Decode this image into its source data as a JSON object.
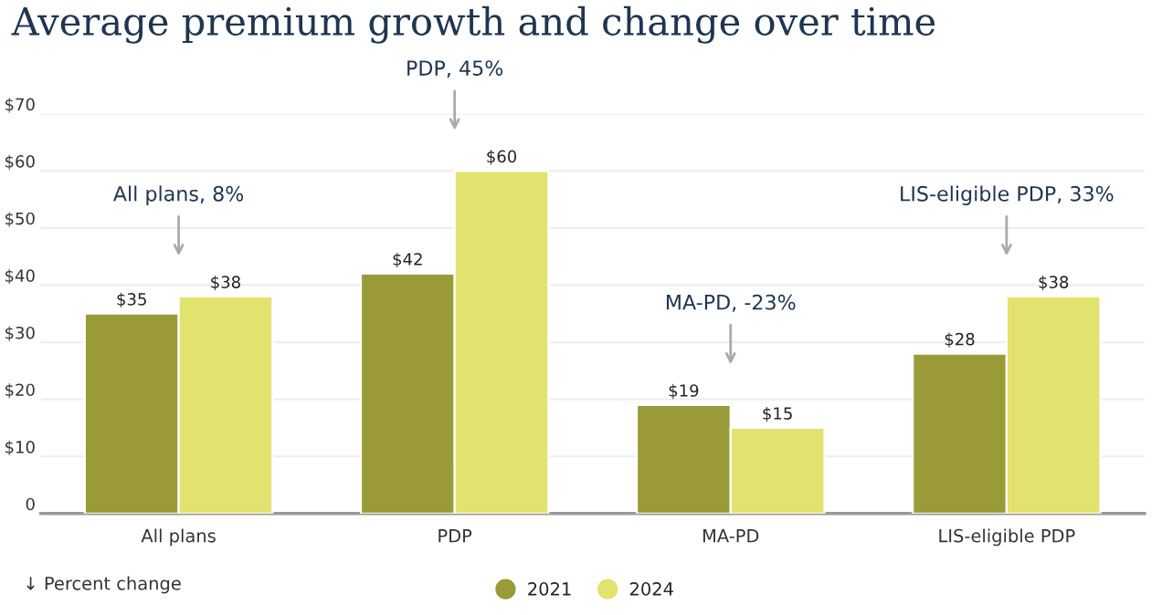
{
  "chart_data": {
    "type": "bar",
    "title": "Average premium growth and change over time",
    "categories": [
      "All plans",
      "PDP",
      "MA-PD",
      "LIS-eligible PDP"
    ],
    "series": [
      {
        "name": "2021",
        "color": "#9a9a38",
        "values": [
          35,
          42,
          19,
          28
        ],
        "value_labels": [
          "$35",
          "$42",
          "$19",
          "$28"
        ]
      },
      {
        "name": "2024",
        "color": "#e2e36e",
        "values": [
          38,
          60,
          15,
          38
        ],
        "value_labels": [
          "$38",
          "$60",
          "$15",
          "$38"
        ]
      }
    ],
    "ylim": [
      0,
      70
    ],
    "yticks": [
      0,
      {
        "value": 10,
        "label": "$10"
      },
      {
        "value": 20,
        "label": "$20"
      },
      {
        "value": 30,
        "label": "$30"
      },
      {
        "value": 40,
        "label": "$40"
      },
      {
        "value": 50,
        "label": "$50"
      },
      {
        "value": 60,
        "label": "$60"
      },
      {
        "value": 70,
        "label": "$70"
      }
    ],
    "grid": "y",
    "legend": "bottom",
    "annotations": [
      "All plans, 8%",
      "PDP, 45%",
      "MA-PD, -23%",
      "LIS-eligible PDP, 33%",
      "↓ Percent change"
    ]
  }
}
